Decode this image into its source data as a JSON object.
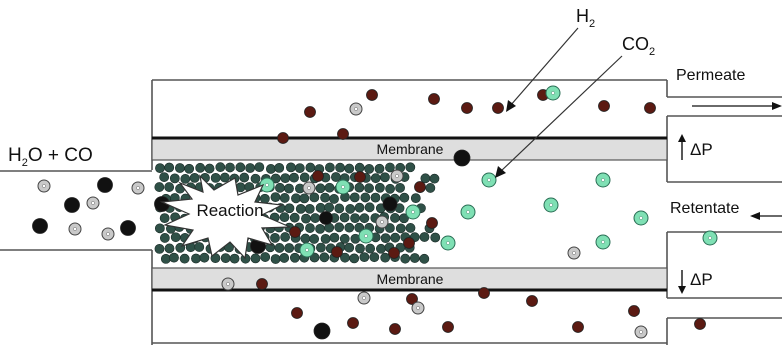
{
  "labels": {
    "feed_main": "H",
    "feed_sub": "2",
    "feed_rest": "O + CO",
    "h2_main": "H",
    "h2_sub": "2",
    "co2_main": "CO",
    "co2_sub": "2",
    "permeate": "Permeate",
    "retentate": "Retentate",
    "membrane_top": "Membrane",
    "membrane_bottom": "Membrane",
    "dp_top": "ΔP",
    "dp_bottom": "ΔP",
    "reaction": "Reaction"
  },
  "colors": {
    "h2_particle": "#5b1a12",
    "co2_particle": "#7fe0b4",
    "h2o_particle": "#111111",
    "co_particle": "#c9c9c9",
    "catalyst_particle": "#2f5047",
    "membrane_fill": "#dedede",
    "line": "#111111"
  },
  "legend_icons": [
    "h2-particle-icon",
    "co2-particle-icon",
    "h2o-particle-icon",
    "co-particle-icon"
  ]
}
